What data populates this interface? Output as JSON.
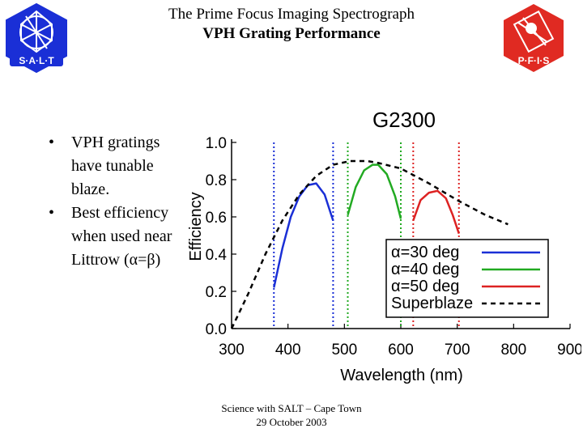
{
  "header": {
    "title_line1": "The Prime Focus Imaging Spectrograph",
    "title_line2": "VPH Grating Performance"
  },
  "logos": {
    "left": {
      "text": "S·A·L·T",
      "icon": "salt-logo-icon",
      "color": "#1a2fd6"
    },
    "right": {
      "text": "P·F·I·S",
      "icon": "pfis-logo-icon",
      "color": "#e02a22"
    }
  },
  "bullets": [
    {
      "symbol": "•",
      "text": "VPH gratings have tunable blaze."
    },
    {
      "symbol": "•",
      "text": "Best efficiency when used near Littrow (α=β)"
    }
  ],
  "footer": {
    "line1": "Science with SALT – Cape Town",
    "line2": "29 October 2003"
  },
  "chart_data": {
    "type": "line",
    "title": "G2300",
    "xlabel": "Wavelength (nm)",
    "ylabel": "Efficiency",
    "xlim": [
      300,
      900
    ],
    "ylim": [
      0,
      1.0
    ],
    "xticks": [
      "300",
      "400",
      "500",
      "600",
      "700",
      "800",
      "900"
    ],
    "yticks": [
      "0.0",
      "0.2",
      "0.4",
      "0.6",
      "0.8",
      "1.0"
    ],
    "legend_position": "bottom-right",
    "grid": false,
    "series": [
      {
        "name": "α=30 deg",
        "color": "#1a2fd6",
        "style": "solid",
        "x": [
          375,
          390,
          405,
          420,
          435,
          450,
          465,
          480
        ],
        "y": [
          0.22,
          0.43,
          0.6,
          0.71,
          0.77,
          0.78,
          0.72,
          0.58
        ]
      },
      {
        "name": "α=40 deg",
        "color": "#22aa22",
        "style": "solid",
        "x": [
          506,
          520,
          535,
          550,
          560,
          575,
          590,
          600
        ],
        "y": [
          0.61,
          0.76,
          0.85,
          0.88,
          0.88,
          0.83,
          0.71,
          0.59
        ]
      },
      {
        "name": "α=50 deg",
        "color": "#dd2222",
        "style": "solid",
        "x": [
          622,
          635,
          650,
          665,
          680,
          692,
          703
        ],
        "y": [
          0.58,
          0.69,
          0.73,
          0.74,
          0.7,
          0.61,
          0.51
        ]
      },
      {
        "name": "Superblaze",
        "color": "#000000",
        "style": "dashed",
        "x": [
          300,
          330,
          360,
          390,
          420,
          450,
          480,
          510,
          540,
          560,
          600,
          650,
          700,
          750,
          790
        ],
        "y": [
          0.0,
          0.19,
          0.4,
          0.58,
          0.72,
          0.82,
          0.88,
          0.9,
          0.9,
          0.89,
          0.86,
          0.78,
          0.69,
          0.61,
          0.56
        ]
      }
    ],
    "vlines": [
      {
        "x": 375,
        "color": "#1a2fd6"
      },
      {
        "x": 480,
        "color": "#1a2fd6"
      },
      {
        "x": 506,
        "color": "#22aa22"
      },
      {
        "x": 600,
        "color": "#22aa22"
      },
      {
        "x": 622,
        "color": "#dd2222"
      },
      {
        "x": 703,
        "color": "#dd2222"
      }
    ]
  }
}
